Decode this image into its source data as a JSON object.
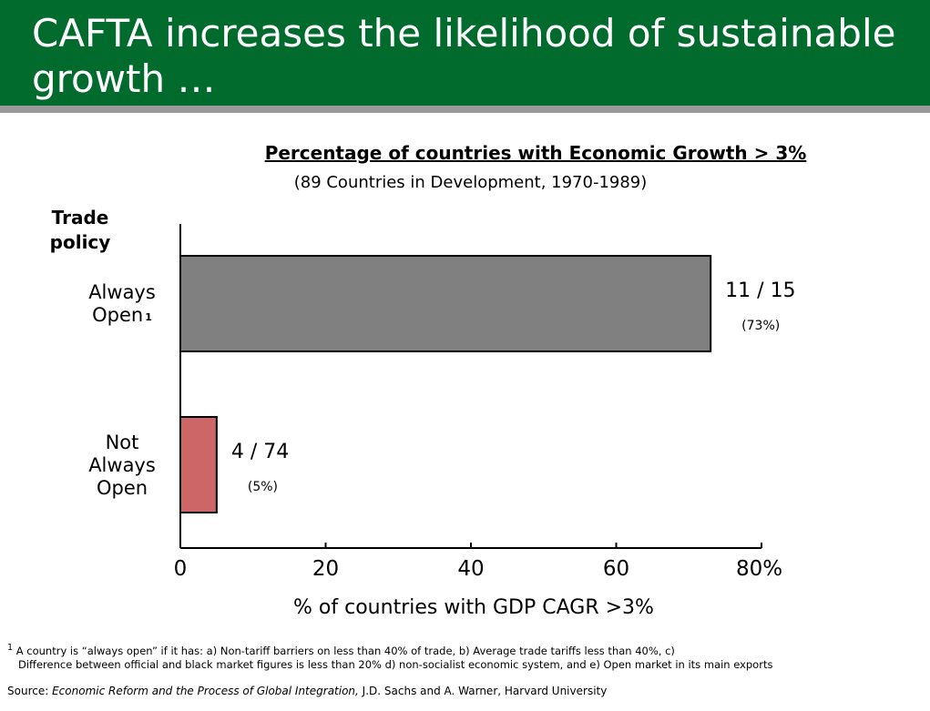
{
  "slide": {
    "title": "CAFTA increases the likelihood of sustainable growth …"
  },
  "chart_data": {
    "type": "bar",
    "orientation": "horizontal",
    "title": "Percentage of countries with Economic Growth > 3%",
    "subtitle": "(89 Countries in Development, 1970-1989)",
    "ylabel": "Trade policy",
    "xlabel": "% of countries with GDP CAGR >3%",
    "categories": [
      "Always Open",
      "Not Always Open"
    ],
    "category_superscripts": [
      "1",
      ""
    ],
    "values": [
      73,
      5
    ],
    "ratio_labels": [
      "11 / 15",
      "4 / 74"
    ],
    "percent_labels": [
      "(73%)",
      "(5%)"
    ],
    "bar_colors": [
      "#808080",
      "#cd6666"
    ],
    "xlim": [
      0,
      80
    ],
    "xticks": [
      "0",
      "20",
      "40",
      "60",
      "80%"
    ],
    "grid": false
  },
  "footnote": {
    "marker": "1",
    "text_first": "A country is “always open” if it has: a) Non-tariff barriers on less than 40% of trade, b) Average trade tariffs less than 40%, c)",
    "text_rest": "Difference between official and black market figures is less than 20% d) non-socialist  economic system, and e) Open market in its main exports"
  },
  "source": {
    "label": "Source:",
    "work": "Economic Reform and the Process of Global Integration,",
    "credit": "J.D. Sachs and A. Warner, Harvard University"
  }
}
